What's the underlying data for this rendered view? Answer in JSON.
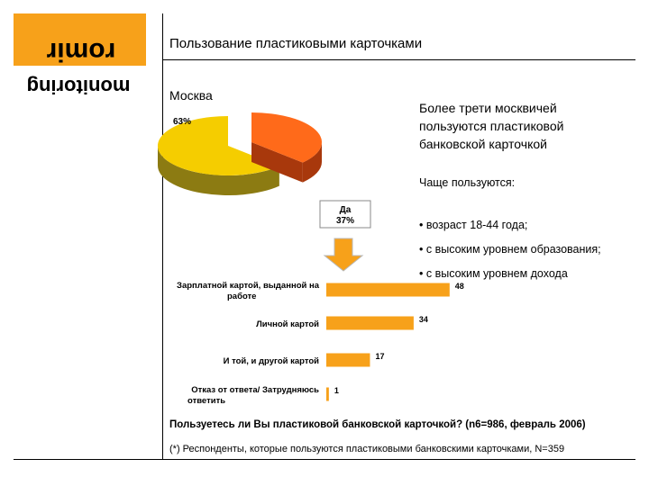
{
  "logo": {
    "top_word": "romir",
    "bottom_word": "monitoring"
  },
  "header": {
    "title": "Пользование пластиковыми карточками"
  },
  "city": "Москва",
  "summary": "Более трети москвичей пользуются пластиковой банковской карточкой",
  "often": {
    "title": "Чаще пользуются:",
    "bullets": [
      "• возраст 18-44 года;",
      "• с высоким уровнем образования;",
      "• с высоким уровнем дохода"
    ]
  },
  "question": "Пользуетесь ли Вы пластиковой банковской карточкой? (n6=986, февраль 2006)",
  "footnote": "(*) Респонденты, которые пользуются пластиковыми банковскими карточками, N=359",
  "colors": {
    "accent": "#f7a11a",
    "pie_no": "#f5cd00",
    "pie_no_side": "#8c7b12",
    "pie_yes": "#ff6a1a",
    "pie_yes_side": "#a8380c",
    "bar": "#f7a11a",
    "arrow": "#f7a11a"
  },
  "chart_data": [
    {
      "type": "pie",
      "slices": [
        {
          "label": "63%",
          "value": 63
        },
        {
          "label": "Да\n37%",
          "value": 37
        }
      ]
    },
    {
      "type": "bar",
      "orientation": "horizontal",
      "categories": [
        "Зарплатной картой, выданной на работе",
        "Личной картой",
        "И той, и другой картой",
        "Отказ от ответа/ Затрудняюсь ответить"
      ],
      "values": [
        48,
        34,
        17,
        1
      ]
    }
  ]
}
